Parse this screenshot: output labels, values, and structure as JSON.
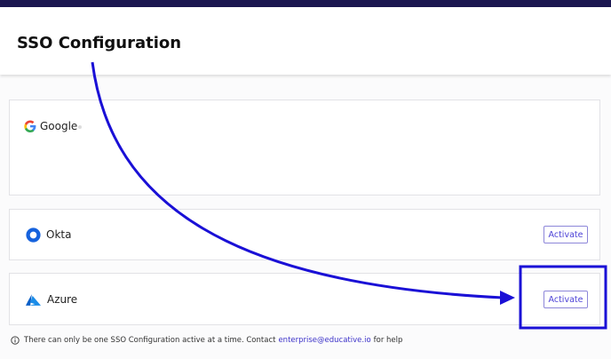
{
  "header": {
    "title": "SSO Configuration"
  },
  "providers": [
    {
      "name": "Google"
    },
    {
      "name": "Okta",
      "action": "Activate"
    },
    {
      "name": "Azure",
      "action": "Activate"
    }
  ],
  "footer": {
    "text": "There can only be one SSO Configuration active at a time. Contact",
    "link": "enterprise@educative.io",
    "suffix": "for help"
  }
}
